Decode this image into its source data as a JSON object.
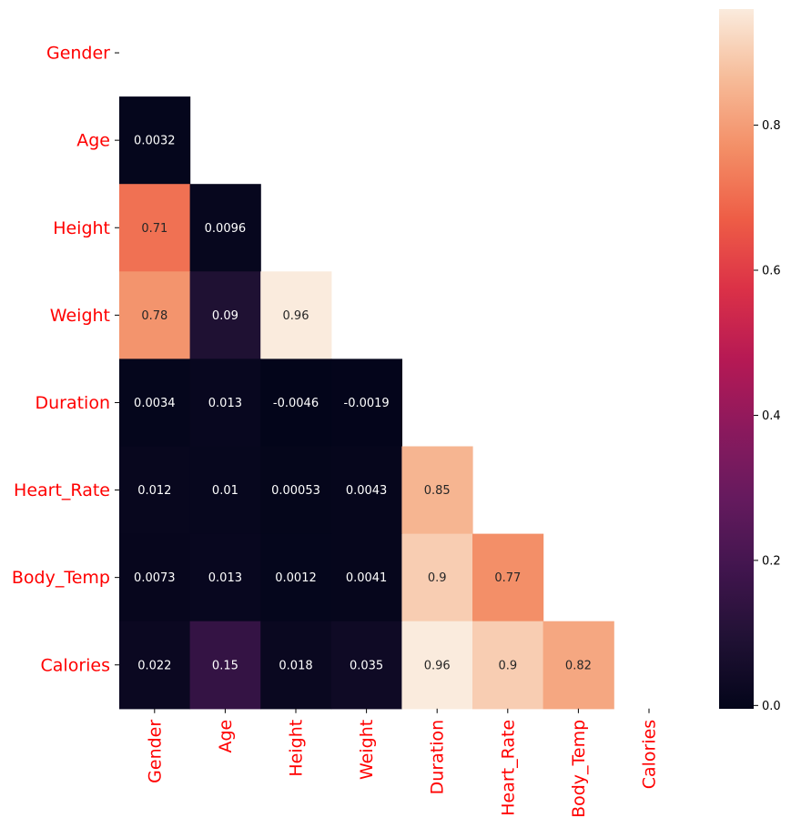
{
  "chart_data": {
    "type": "heatmap",
    "title": "",
    "xlabel": "",
    "ylabel": "",
    "variables": [
      "Gender",
      "Age",
      "Height",
      "Weight",
      "Duration",
      "Heart_Rate",
      "Body_Temp",
      "Calories"
    ],
    "mask": "upper-triangle including diagonal",
    "matrix": [
      [
        null,
        null,
        null,
        null,
        null,
        null,
        null,
        null
      ],
      [
        0.0032,
        null,
        null,
        null,
        null,
        null,
        null,
        null
      ],
      [
        0.71,
        0.0096,
        null,
        null,
        null,
        null,
        null,
        null
      ],
      [
        0.78,
        0.09,
        0.96,
        null,
        null,
        null,
        null,
        null
      ],
      [
        0.0034,
        0.013,
        -0.0046,
        -0.0019,
        null,
        null,
        null,
        null
      ],
      [
        0.012,
        0.01,
        0.00053,
        0.0043,
        0.85,
        null,
        null,
        null
      ],
      [
        0.0073,
        0.013,
        0.0012,
        0.0041,
        0.9,
        0.77,
        null,
        null
      ],
      [
        0.022,
        0.15,
        0.018,
        0.035,
        0.96,
        0.9,
        0.82,
        null
      ]
    ],
    "labels": [
      [
        null,
        null,
        null,
        null,
        null,
        null,
        null,
        null
      ],
      [
        "0.0032",
        null,
        null,
        null,
        null,
        null,
        null,
        null
      ],
      [
        "0.71",
        "0.0096",
        null,
        null,
        null,
        null,
        null,
        null
      ],
      [
        "0.78",
        "0.09",
        "0.96",
        null,
        null,
        null,
        null,
        null
      ],
      [
        "0.0034",
        "0.013",
        "-0.0046",
        "-0.0019",
        null,
        null,
        null,
        null
      ],
      [
        "0.012",
        "0.01",
        "0.00053",
        "0.0043",
        "0.85",
        null,
        null,
        null
      ],
      [
        "0.0073",
        "0.013",
        "0.0012",
        "0.0041",
        "0.9",
        "0.77",
        null,
        null
      ],
      [
        "0.022",
        "0.15",
        "0.018",
        "0.035",
        "0.96",
        "0.9",
        "0.82",
        null
      ]
    ],
    "colormap": "rocket",
    "vmin": -0.0046,
    "vmax": 0.96,
    "colorbar_ticks": [
      "0.0",
      "0.2",
      "0.4",
      "0.6",
      "0.8"
    ],
    "colorbar_tick_values": [
      0.0,
      0.2,
      0.4,
      0.6,
      0.8
    ],
    "tick_label_color": "#ff0000",
    "colorbar_placement": "right"
  }
}
